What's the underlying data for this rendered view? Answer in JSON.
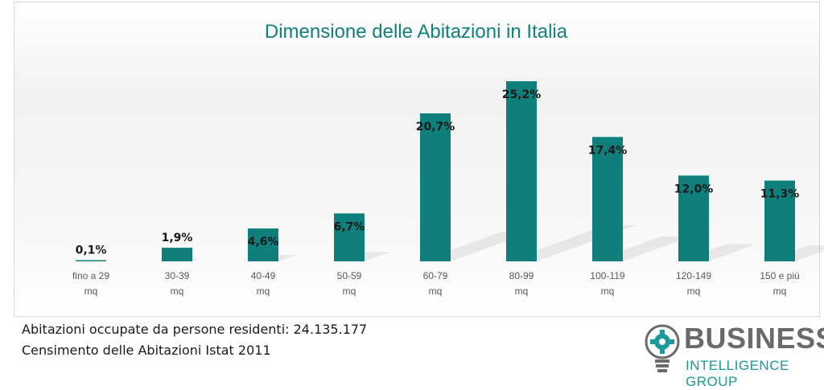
{
  "chart_data": {
    "type": "bar",
    "title": "Dimensione delle Abitazioni in Italia",
    "categories": [
      [
        "fino a 29",
        "mq"
      ],
      [
        "30-39",
        "mq"
      ],
      [
        "40-49",
        "mq"
      ],
      [
        "50-59",
        "mq"
      ],
      [
        "60-79",
        "mq"
      ],
      [
        "80-99",
        "mq"
      ],
      [
        "100-119",
        "mq"
      ],
      [
        "120-149",
        "mq"
      ],
      [
        "150 e più",
        "mq"
      ]
    ],
    "values": [
      0.1,
      1.9,
      4.6,
      6.7,
      20.7,
      25.2,
      17.4,
      12.0,
      11.3
    ],
    "data_labels": [
      "0,1%",
      "1,9%",
      "4,6%",
      "6,7%",
      "20,7%",
      "25,2%",
      "17,4%",
      "12,0%",
      "11,3%"
    ],
    "ylim": [
      0,
      25.2
    ],
    "bar_color": "#0e7f7a",
    "grid": false,
    "legend": "none"
  },
  "notes": {
    "line1": "Abitazioni occupate da persone residenti: 24.135.177",
    "line2": "Censimento delle Abitazioni Istat 2011"
  },
  "logo": {
    "word1": "BUSINESS",
    "word2": "INTELLIGENCE GROUP",
    "icon": "lightbulb-gear-icon",
    "colors": {
      "primary": "#6a6a6a",
      "accent": "#1a9a9a"
    }
  }
}
